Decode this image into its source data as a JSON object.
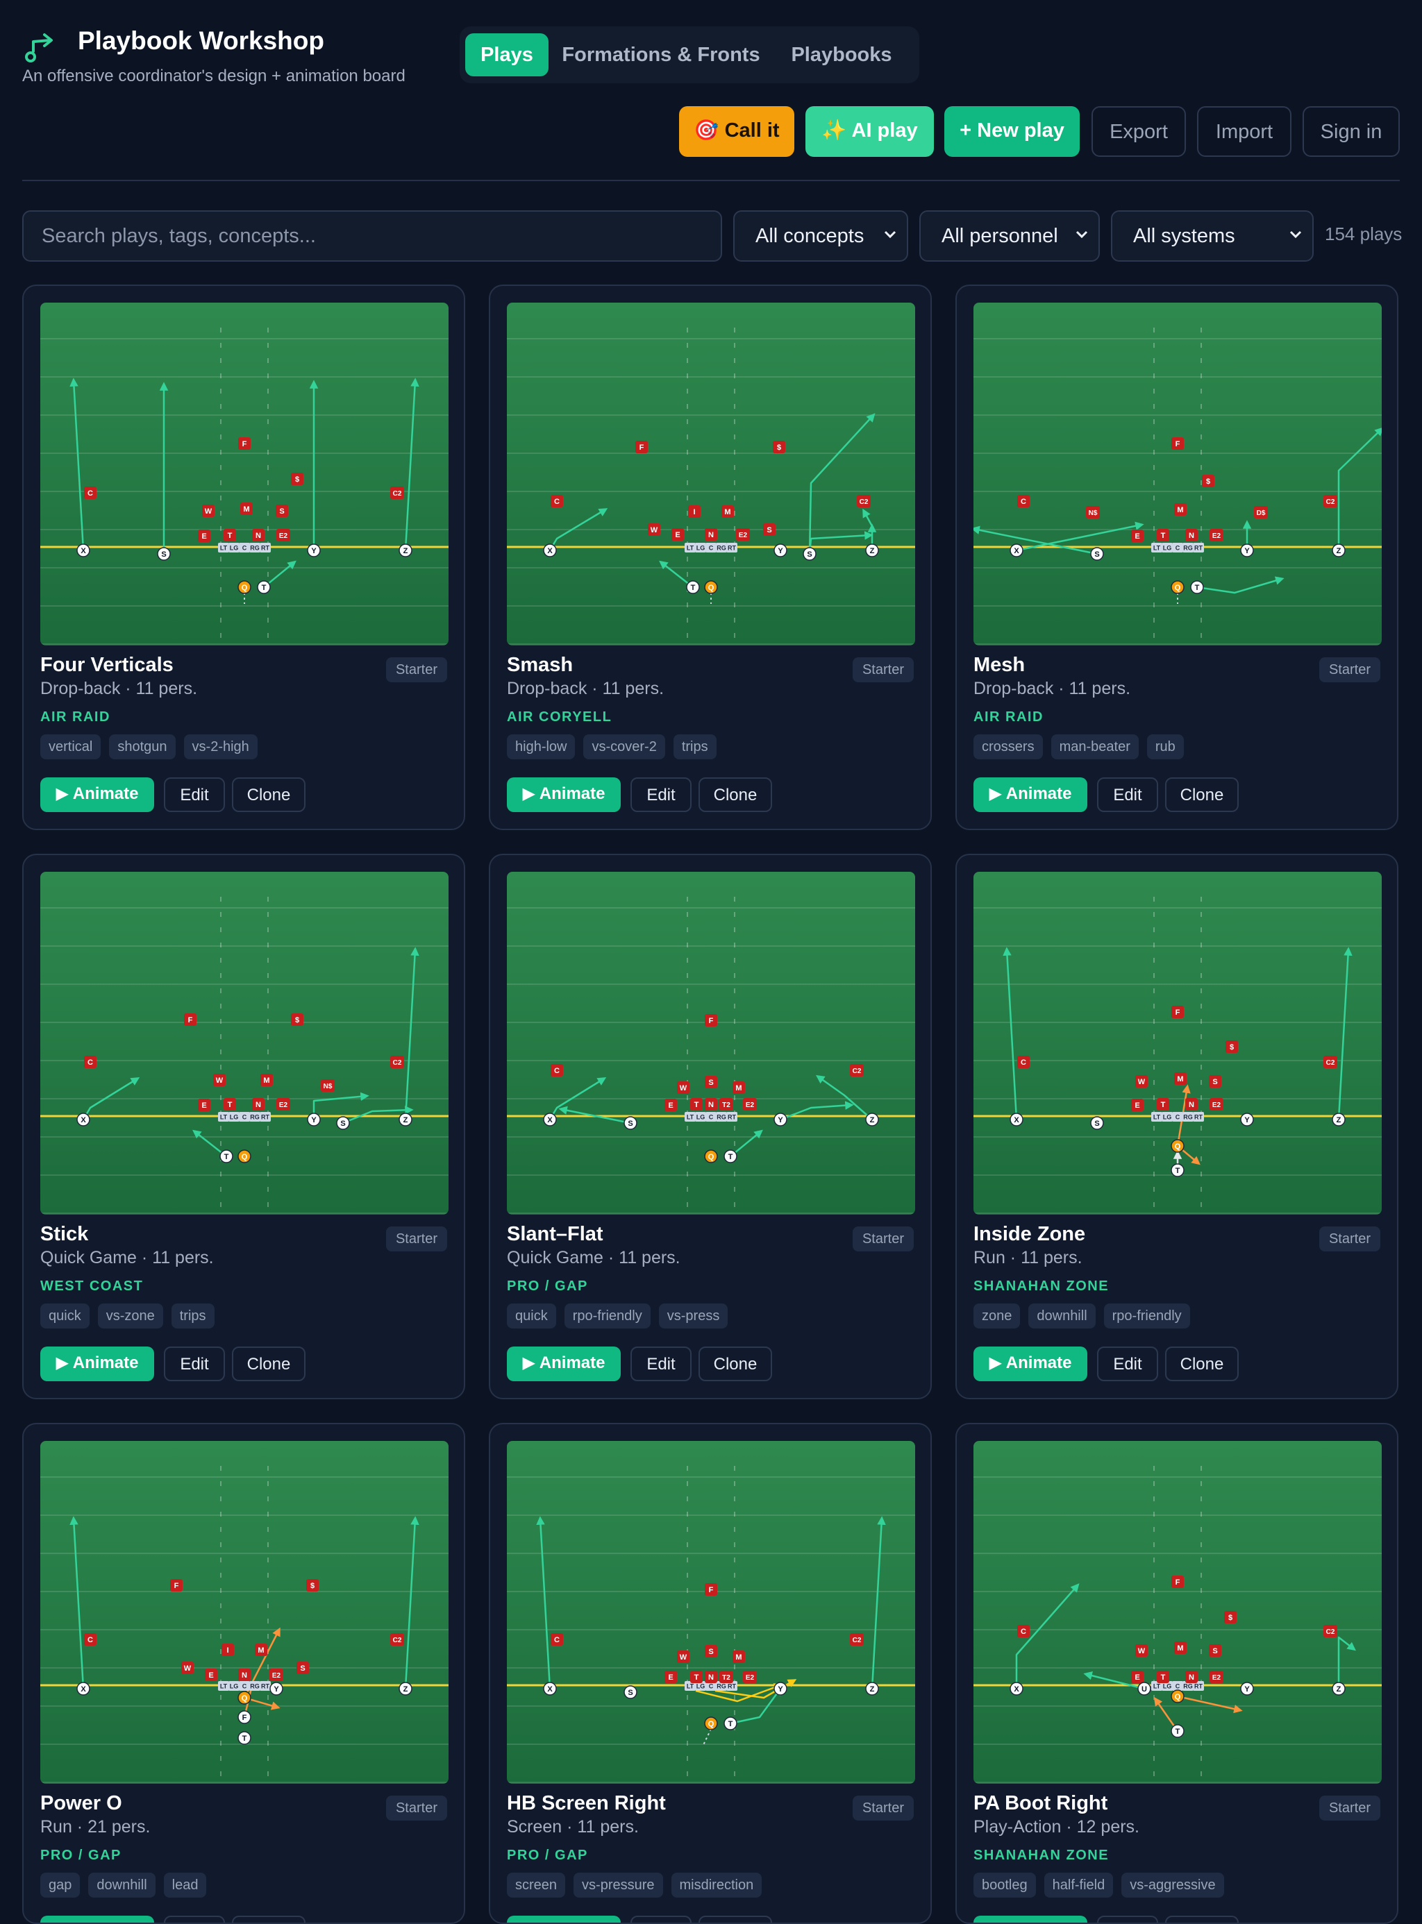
{
  "header": {
    "title": "Playbook Workshop",
    "subtitle": "An offensive coordinator's design + animation board",
    "logo_icon": "route-arrow-icon",
    "accent": "#10b981"
  },
  "tabs": [
    {
      "label": "Plays",
      "active": true
    },
    {
      "label": "Formations & Fronts",
      "active": false
    },
    {
      "label": "Playbooks",
      "active": false
    }
  ],
  "actions": {
    "call_it": "Call it",
    "call_it_icon": "🎯",
    "ai_play": "AI play",
    "ai_play_icon": "✨",
    "new_play": "+ New play",
    "export": "Export",
    "import": "Import",
    "sign_in": "Sign in"
  },
  "filters": {
    "search_placeholder": "Search plays, tags, concepts...",
    "concepts": "All concepts",
    "personnel": "All personnel",
    "systems": "All systems",
    "count": "154 plays"
  },
  "card_actions": {
    "animate": "Animate",
    "edit": "Edit",
    "clone": "Clone"
  },
  "plays": [
    {
      "title": "Four Verticals",
      "badge": "Starter",
      "meta": "Drop-back · 11 pers.",
      "system": "AIR RAID",
      "tags": [
        "vertical",
        "shotgun",
        "vs-2-high"
      ]
    },
    {
      "title": "Smash",
      "badge": "Starter",
      "meta": "Drop-back · 11 pers.",
      "system": "AIR CORYELL",
      "tags": [
        "high-low",
        "vs-cover-2",
        "trips"
      ]
    },
    {
      "title": "Mesh",
      "badge": "Starter",
      "meta": "Drop-back · 11 pers.",
      "system": "AIR RAID",
      "tags": [
        "crossers",
        "man-beater",
        "rub"
      ]
    },
    {
      "title": "Stick",
      "badge": "Starter",
      "meta": "Quick Game · 11 pers.",
      "system": "WEST COAST",
      "tags": [
        "quick",
        "vs-zone",
        "trips"
      ]
    },
    {
      "title": "Slant–Flat",
      "badge": "Starter",
      "meta": "Quick Game · 11 pers.",
      "system": "PRO / GAP",
      "tags": [
        "quick",
        "rpo-friendly",
        "vs-press"
      ]
    },
    {
      "title": "Inside Zone",
      "badge": "Starter",
      "meta": "Run · 11 pers.",
      "system": "SHANAHAN ZONE",
      "tags": [
        "zone",
        "downhill",
        "rpo-friendly"
      ]
    },
    {
      "title": "Power O",
      "badge": "Starter",
      "meta": "Run · 21 pers.",
      "system": "PRO / GAP",
      "tags": [
        "gap",
        "downhill",
        "lead"
      ]
    },
    {
      "title": "HB Screen Right",
      "badge": "Starter",
      "meta": "Screen · 11 pers.",
      "system": "PRO / GAP",
      "tags": [
        "screen",
        "vs-pressure",
        "misdirection"
      ]
    },
    {
      "title": "PA Boot Right",
      "badge": "Starter",
      "meta": "Play-Action · 12 pers.",
      "system": "SHANAHAN ZONE",
      "tags": [
        "bootleg",
        "half-field",
        "vs-aggressive"
      ]
    }
  ],
  "diagrams": [
    {
      "defense": [
        [
          "F",
          294,
          203
        ],
        [
          "$",
          370,
          254
        ],
        [
          "C",
          72,
          274
        ],
        [
          "C2",
          514,
          274
        ],
        [
          "W",
          242,
          300
        ],
        [
          "M",
          297,
          297
        ],
        [
          "S",
          348,
          300
        ],
        [
          "E",
          236,
          336
        ],
        [
          "T",
          273,
          335
        ],
        [
          "N",
          314,
          335
        ],
        [
          "E2",
          350,
          335
        ]
      ],
      "offense": [
        [
          "X",
          62,
          357
        ],
        [
          "S",
          178,
          362
        ],
        [
          "Y",
          394,
          357
        ],
        [
          "Z",
          526,
          357
        ],
        [
          "Q",
          294,
          410
        ],
        [
          "T",
          322,
          410
        ]
      ],
      "routes": [
        [
          "M62 357 L48 112",
          "g"
        ],
        [
          "M178 362 L178 118",
          "g"
        ],
        [
          "M394 357 L394 115",
          "g"
        ],
        [
          "M526 357 L540 112",
          "g"
        ],
        [
          "M322 410 L366 374",
          "g"
        ]
      ],
      "dots": [
        [
          "M294 418 L294 434"
        ]
      ]
    },
    {
      "defense": [
        [
          "F",
          194,
          208
        ],
        [
          "$",
          392,
          208
        ],
        [
          "C",
          72,
          286
        ],
        [
          "C2",
          514,
          286
        ],
        [
          "I",
          270,
          301
        ],
        [
          "M",
          318,
          301
        ],
        [
          "W",
          212,
          327
        ],
        [
          "E",
          246,
          334
        ],
        [
          "N",
          294,
          334
        ],
        [
          "E2",
          340,
          334
        ],
        [
          "S",
          378,
          327
        ]
      ],
      "offense": [
        [
          "X",
          62,
          357
        ],
        [
          "Y",
          394,
          357
        ],
        [
          "S",
          436,
          362
        ],
        [
          "Z",
          526,
          357
        ],
        [
          "T",
          268,
          410
        ],
        [
          "Q",
          294,
          410
        ]
      ],
      "routes": [
        [
          "M62 357 L72 340 L142 298",
          "g"
        ],
        [
          "M268 410 L222 374",
          "g"
        ],
        [
          "M436 362 L438 340 L524 335",
          "g"
        ],
        [
          "M436 362 L438 260 L528 162",
          "g"
        ],
        [
          "M526 357 L526 322",
          "g"
        ],
        [
          "M526 322 L514 300",
          "p"
        ]
      ],
      "dots": [
        [
          "M294 418 L294 434"
        ]
      ]
    },
    {
      "defense": [
        [
          "F",
          294,
          203
        ],
        [
          "$",
          338,
          257
        ],
        [
          "C",
          72,
          286
        ],
        [
          "C2",
          514,
          286
        ],
        [
          "N$",
          172,
          302
        ],
        [
          "M",
          298,
          298
        ],
        [
          "D$",
          414,
          302
        ],
        [
          "E",
          236,
          336
        ],
        [
          "T",
          273,
          335
        ],
        [
          "N",
          314,
          335
        ],
        [
          "E2",
          350,
          335
        ]
      ],
      "offense": [
        [
          "X",
          62,
          357
        ],
        [
          "S",
          178,
          362
        ],
        [
          "Y",
          394,
          357
        ],
        [
          "Z",
          526,
          357
        ],
        [
          "Q",
          294,
          410
        ],
        [
          "T",
          322,
          410
        ]
      ],
      "routes": [
        [
          "M178 362 L0 326",
          "g"
        ],
        [
          "M62 357 L242 320",
          "g"
        ],
        [
          "M322 410 L376 418 L444 398",
          "g"
        ],
        [
          "M394 357 L394 317",
          "g"
        ],
        [
          "M526 357 L526 242 L588 182",
          "g"
        ]
      ],
      "dots": [
        [
          "M294 418 L294 434"
        ]
      ]
    },
    {
      "defense": [
        [
          "F",
          216,
          213
        ],
        [
          "$",
          370,
          213
        ],
        [
          "C",
          72,
          274
        ],
        [
          "C2",
          514,
          274
        ],
        [
          "W",
          258,
          300
        ],
        [
          "M",
          326,
          300
        ],
        [
          "N$",
          414,
          308
        ],
        [
          "E",
          236,
          336
        ],
        [
          "T",
          273,
          335
        ],
        [
          "N",
          314,
          335
        ],
        [
          "E2",
          350,
          335
        ]
      ],
      "offense": [
        [
          "X",
          62,
          357
        ],
        [
          "Y",
          394,
          357
        ],
        [
          "S",
          436,
          362
        ],
        [
          "Z",
          526,
          357
        ],
        [
          "T",
          268,
          410
        ],
        [
          "Q",
          294,
          410
        ]
      ],
      "routes": [
        [
          "M62 357 L72 340 L140 298",
          "g"
        ],
        [
          "M268 410 L222 374",
          "g"
        ],
        [
          "M394 357 L394 330 L470 323",
          "g"
        ],
        [
          "M436 362 L478 345 L534 343",
          "g"
        ],
        [
          "M526 357 L540 112",
          "g"
        ]
      ],
      "dots": []
    },
    {
      "defense": [
        [
          "F",
          294,
          214
        ],
        [
          "C",
          72,
          286
        ],
        [
          "C2",
          504,
          286
        ],
        [
          "W",
          254,
          311
        ],
        [
          "S",
          294,
          303
        ],
        [
          "M",
          334,
          311
        ],
        [
          "E",
          236,
          336
        ],
        [
          "T",
          273,
          335
        ],
        [
          "N",
          294,
          335
        ],
        [
          "T2",
          316,
          335
        ],
        [
          "E2",
          350,
          335
        ]
      ],
      "offense": [
        [
          "X",
          62,
          357
        ],
        [
          "S",
          178,
          362
        ],
        [
          "Y",
          394,
          357
        ],
        [
          "Z",
          526,
          357
        ],
        [
          "Q",
          294,
          410
        ],
        [
          "T",
          322,
          410
        ]
      ],
      "routes": [
        [
          "M62 357 L72 340 L140 298",
          "g"
        ],
        [
          "M178 362 L78 342",
          "g"
        ],
        [
          "M322 410 L366 374",
          "g"
        ],
        [
          "M394 357 L438 340 L496 336",
          "g"
        ],
        [
          "M526 357 L486 322 L448 295",
          "g"
        ]
      ],
      "dots": []
    },
    {
      "defense": [
        [
          "F",
          294,
          202
        ],
        [
          "$",
          372,
          252
        ],
        [
          "C",
          72,
          274
        ],
        [
          "C2",
          514,
          274
        ],
        [
          "W",
          242,
          302
        ],
        [
          "M",
          298,
          298
        ],
        [
          "S",
          348,
          302
        ],
        [
          "E",
          236,
          336
        ],
        [
          "T",
          273,
          335
        ],
        [
          "N",
          314,
          335
        ],
        [
          "E2",
          350,
          335
        ]
      ],
      "offense": [
        [
          "X",
          62,
          357
        ],
        [
          "S",
          178,
          362
        ],
        [
          "Y",
          394,
          357
        ],
        [
          "Z",
          526,
          357
        ],
        [
          "Q",
          294,
          395
        ],
        [
          "T",
          294,
          430
        ]
      ],
      "routes": [
        [
          "M62 357 L48 112",
          "g"
        ],
        [
          "M526 357 L540 112",
          "g"
        ],
        [
          "M294 395 L308 310",
          "o"
        ],
        [
          "M294 395 L324 420",
          "o"
        ],
        [
          "M294 430 L294 405",
          "w"
        ]
      ],
      "dots": []
    },
    {
      "defense": [
        [
          "F",
          196,
          208
        ],
        [
          "$",
          392,
          208
        ],
        [
          "C",
          72,
          286
        ],
        [
          "C2",
          514,
          286
        ],
        [
          "I",
          270,
          301
        ],
        [
          "M",
          318,
          301
        ],
        [
          "W",
          212,
          327
        ],
        [
          "E",
          246,
          337
        ],
        [
          "N",
          294,
          337
        ],
        [
          "E2",
          340,
          337
        ],
        [
          "S",
          378,
          327
        ]
      ],
      "offense": [
        [
          "X",
          62,
          357
        ],
        [
          "Y",
          340,
          357
        ],
        [
          "Z",
          526,
          357
        ],
        [
          "Q",
          294,
          370
        ],
        [
          "F",
          294,
          398
        ],
        [
          "T",
          294,
          428
        ]
      ],
      "routes": [
        [
          "M62 357 L48 112",
          "g"
        ],
        [
          "M526 357 L540 112",
          "g"
        ],
        [
          "M294 370 L342 384",
          "o"
        ],
        [
          "M294 370 L344 272",
          "o"
        ],
        [
          "M294 398 L306 348",
          "o"
        ]
      ],
      "dots": []
    },
    {
      "defense": [
        [
          "F",
          294,
          214
        ],
        [
          "C",
          72,
          286
        ],
        [
          "C2",
          504,
          286
        ],
        [
          "W",
          254,
          311
        ],
        [
          "S",
          294,
          303
        ],
        [
          "M",
          334,
          311
        ],
        [
          "E",
          236,
          340
        ],
        [
          "T",
          273,
          340
        ],
        [
          "N",
          294,
          340
        ],
        [
          "T2",
          316,
          340
        ],
        [
          "E2",
          350,
          340
        ]
      ],
      "offense": [
        [
          "X",
          62,
          357
        ],
        [
          "S",
          178,
          362
        ],
        [
          "Y",
          394,
          357
        ],
        [
          "Z",
          526,
          357
        ],
        [
          "Q",
          294,
          407
        ],
        [
          "T",
          322,
          407
        ]
      ],
      "routes": [
        [
          "M62 357 L48 112",
          "g"
        ],
        [
          "M526 357 L540 112",
          "g"
        ],
        [
          "M322 407 L364 398 L394 357",
          "g"
        ],
        [
          "M272 360 L332 375 L394 352",
          "y"
        ],
        [
          "M300 360 L370 370 L414 345",
          "y"
        ]
      ],
      "dots": [
        [
          "M294 415 L282 440"
        ]
      ]
    },
    {
      "defense": [
        [
          "F",
          294,
          203
        ],
        [
          "$",
          370,
          254
        ],
        [
          "C",
          72,
          274
        ],
        [
          "C2",
          514,
          274
        ],
        [
          "W",
          242,
          302
        ],
        [
          "M",
          298,
          298
        ],
        [
          "S",
          348,
          302
        ],
        [
          "E",
          236,
          340
        ],
        [
          "T",
          273,
          340
        ],
        [
          "N",
          314,
          340
        ],
        [
          "E2",
          350,
          340
        ]
      ],
      "offense": [
        [
          "X",
          62,
          357
        ],
        [
          "U",
          246,
          357
        ],
        [
          "Y",
          394,
          357
        ],
        [
          "Z",
          526,
          357
        ],
        [
          "Q",
          294,
          368
        ],
        [
          "T",
          294,
          418
        ]
      ],
      "routes": [
        [
          "M62 357 L62 308 L150 208",
          "g"
        ],
        [
          "M526 357 L526 283 L548 300",
          "g"
        ],
        [
          "M246 357 L162 336",
          "g"
        ],
        [
          "M294 368 L384 388",
          "o"
        ],
        [
          "M294 418 L262 372",
          "o"
        ]
      ],
      "dots": []
    }
  ]
}
